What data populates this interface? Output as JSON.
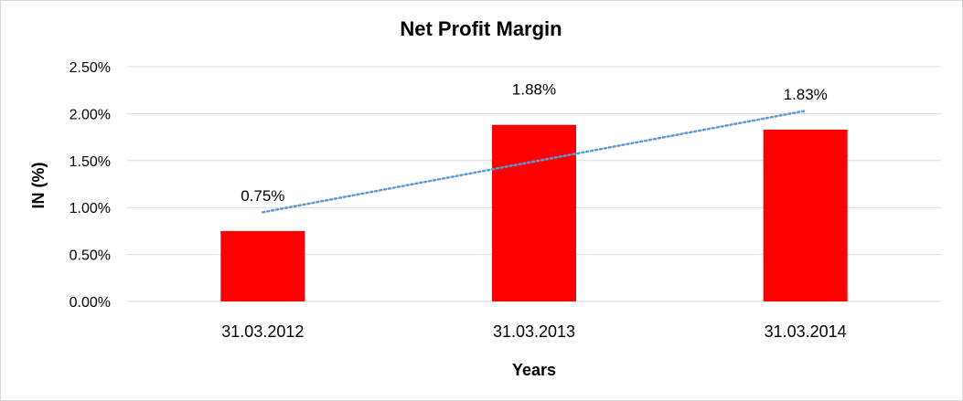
{
  "chart_data": {
    "type": "bar",
    "title": "Net Profit Margin",
    "xlabel": "Years",
    "ylabel": "IN (%)",
    "categories": [
      "31.03.2012",
      "31.03.2013",
      "31.03.2014"
    ],
    "values": [
      0.75,
      1.88,
      1.83
    ],
    "data_labels": [
      "0.75%",
      "1.88%",
      "1.83%"
    ],
    "ylim": [
      0,
      2.5
    ],
    "y_ticks": [
      0,
      0.5,
      1.0,
      1.5,
      2.0,
      2.5
    ],
    "y_tick_labels": [
      "0.00%",
      "0.50%",
      "1.00%",
      "1.50%",
      "2.00%",
      "2.50%"
    ],
    "trendline": {
      "type": "linear",
      "style": "dotted",
      "color": "#5b9bd5",
      "values": [
        0.95,
        1.49,
        2.03
      ]
    },
    "grid": true,
    "legend": "none",
    "colors": {
      "bar": "#ff0000",
      "grid": "#d9d9d9",
      "border": "#d9d9d9"
    }
  }
}
